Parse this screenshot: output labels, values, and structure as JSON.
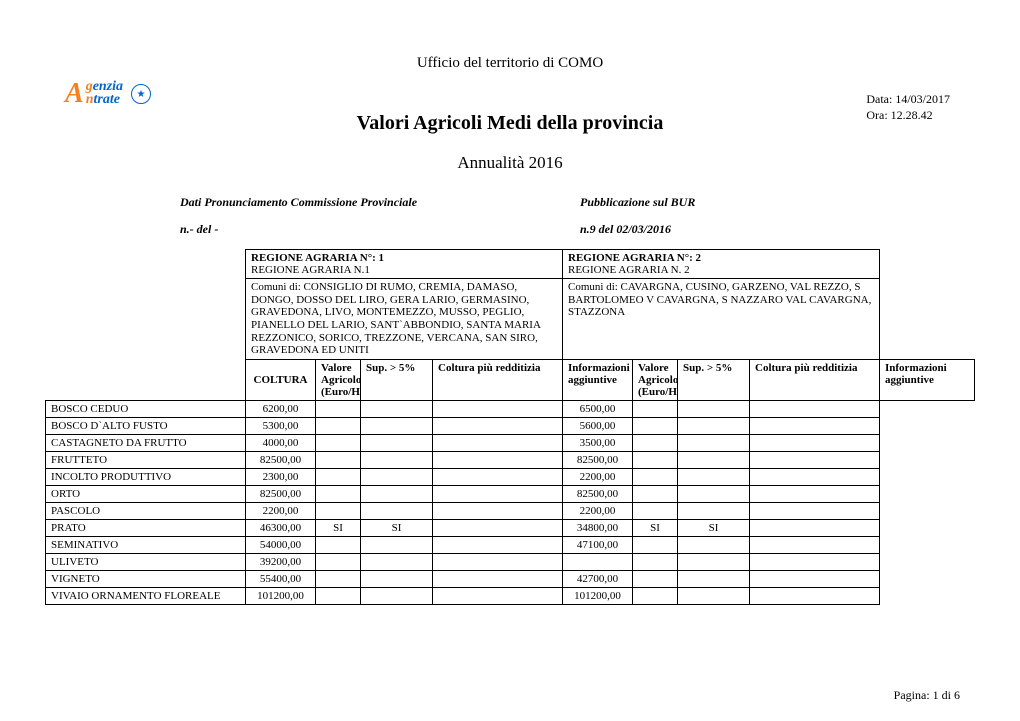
{
  "header": {
    "ufficio": "Ufficio del territorio di  COMO",
    "data_label": "Data: 14/03/2017",
    "ora_label": "Ora: 12.28.42",
    "title": "Valori Agricoli Medi della provincia",
    "subtitle": "Annualità  2016"
  },
  "meta": {
    "left_label": "Dati Pronunciamento Commissione Provinciale",
    "right_label": "Pubblicazione sul BUR",
    "left_value": "n.- del  -",
    "right_value": "n.9  del 02/03/2016"
  },
  "regions": {
    "r1": {
      "title": "REGIONE AGRARIA N°:  1",
      "name": "REGIONE AGRARIA N.1",
      "comuni": "Comuni di: CONSIGLIO DI RUMO, CREMIA, DAMASO, DONGO, DOSSO DEL LIRO, GERA LARIO, GERMASINO, GRAVEDONA, LIVO, MONTEMEZZO, MUSSO, PEGLIO, PIANELLO DEL LARIO, SANT`ABBONDIO, SANTA MARIA REZZONICO, SORICO, TREZZONE, VERCANA, SAN SIRO, GRAVEDONA ED UNITI"
    },
    "r2": {
      "title": "REGIONE AGRARIA N°: 2",
      "name": "REGIONE AGRARIA N. 2",
      "comuni": "Comuni di: CAVARGNA, CUSINO, GARZENO, VAL REZZO, S BARTOLOMEO V CAVARGNA, S NAZZARO VAL CAVARGNA, STAZZONA"
    }
  },
  "columns": {
    "coltura": "COLTURA",
    "valore": "Valore Agricolo (Euro/Ha)",
    "sup": "Sup. > 5%",
    "redd": "Coltura più redditizia",
    "info": "Informazioni aggiuntive"
  },
  "rows": [
    {
      "coltura": "BOSCO CEDUO",
      "v1": "6200,00",
      "s1": "",
      "r1": "",
      "i1": "",
      "v2": "6500,00",
      "s2": "",
      "r2": "",
      "i2": ""
    },
    {
      "coltura": "BOSCO D`ALTO FUSTO",
      "v1": "5300,00",
      "s1": "",
      "r1": "",
      "i1": "",
      "v2": "5600,00",
      "s2": "",
      "r2": "",
      "i2": ""
    },
    {
      "coltura": "CASTAGNETO DA FRUTTO",
      "v1": "4000,00",
      "s1": "",
      "r1": "",
      "i1": "",
      "v2": "3500,00",
      "s2": "",
      "r2": "",
      "i2": ""
    },
    {
      "coltura": "FRUTTETO",
      "v1": "82500,00",
      "s1": "",
      "r1": "",
      "i1": "",
      "v2": "82500,00",
      "s2": "",
      "r2": "",
      "i2": ""
    },
    {
      "coltura": "INCOLTO PRODUTTIVO",
      "v1": "2300,00",
      "s1": "",
      "r1": "",
      "i1": "",
      "v2": "2200,00",
      "s2": "",
      "r2": "",
      "i2": ""
    },
    {
      "coltura": "ORTO",
      "v1": "82500,00",
      "s1": "",
      "r1": "",
      "i1": "",
      "v2": "82500,00",
      "s2": "",
      "r2": "",
      "i2": ""
    },
    {
      "coltura": "PASCOLO",
      "v1": "2200,00",
      "s1": "",
      "r1": "",
      "i1": "",
      "v2": "2200,00",
      "s2": "",
      "r2": "",
      "i2": ""
    },
    {
      "coltura": "PRATO",
      "v1": "46300,00",
      "s1": "SI",
      "r1": "SI",
      "i1": "",
      "v2": "34800,00",
      "s2": "SI",
      "r2": "SI",
      "i2": ""
    },
    {
      "coltura": "SEMINATIVO",
      "v1": "54000,00",
      "s1": "",
      "r1": "",
      "i1": "",
      "v2": "47100,00",
      "s2": "",
      "r2": "",
      "i2": ""
    },
    {
      "coltura": "ULIVETO",
      "v1": "39200,00",
      "s1": "",
      "r1": "",
      "i1": "",
      "v2": "",
      "s2": "",
      "r2": "",
      "i2": ""
    },
    {
      "coltura": "VIGNETO",
      "v1": "55400,00",
      "s1": "",
      "r1": "",
      "i1": "",
      "v2": "42700,00",
      "s2": "",
      "r2": "",
      "i2": ""
    },
    {
      "coltura": "VIVAIO ORNAMENTO FLOREALE",
      "v1": "101200,00",
      "s1": "",
      "r1": "",
      "i1": "",
      "v2": "101200,00",
      "s2": "",
      "r2": "",
      "i2": ""
    }
  ],
  "footer": {
    "page": "Pagina: 1 di 6"
  },
  "colors": {
    "logo_orange": "#f58020",
    "logo_blue": "#0066cc",
    "text": "#000000",
    "background": "#ffffff",
    "border": "#000000"
  }
}
